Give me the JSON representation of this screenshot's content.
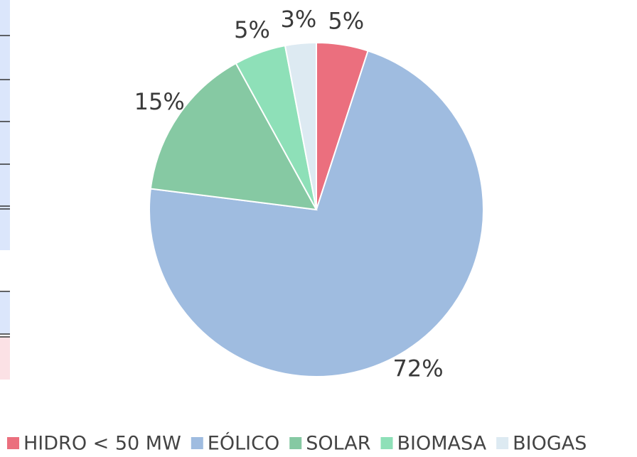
{
  "chart_data": {
    "type": "pie",
    "categories": [
      "HIDRO < 50 MW",
      "EÓLICO",
      "SOLAR",
      "BIOMASA",
      "BIOGAS"
    ],
    "values": [
      5,
      72,
      15,
      5,
      3
    ],
    "value_labels": [
      "5%",
      "72%",
      "15%",
      "5%",
      "3%"
    ],
    "colors": [
      "#eb6f7e",
      "#9fbce0",
      "#86c9a3",
      "#8ee0b8",
      "#ddeaf2"
    ],
    "legend": "bottom"
  }
}
